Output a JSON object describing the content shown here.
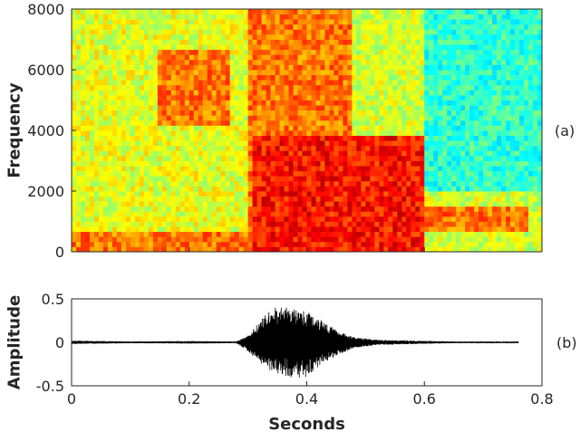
{
  "chart_data": [
    {
      "type": "heatmap",
      "panel_label": "(a)",
      "ylabel": "Frequency",
      "xlim": [
        0,
        0.8
      ],
      "ylim": [
        0,
        8000
      ],
      "yticks": [
        0,
        2000,
        4000,
        6000,
        8000
      ],
      "ytick_labels": [
        "0",
        "2000",
        "4000",
        "6000",
        "8000"
      ],
      "colormap": "jet",
      "x_tick_labels_shown": false,
      "regions": [
        {
          "x": [
            0.0,
            0.31
          ],
          "y": [
            0,
            8000
          ],
          "level": "medium"
        },
        {
          "x": [
            0.15,
            0.27
          ],
          "y": [
            4200,
            6700
          ],
          "level": "high"
        },
        {
          "x": [
            0.0,
            0.3
          ],
          "y": [
            0,
            700
          ],
          "level": "high"
        },
        {
          "x": [
            0.31,
            0.6
          ],
          "y": [
            0,
            3800
          ],
          "level": "very high"
        },
        {
          "x": [
            0.3,
            0.48
          ],
          "y": [
            0,
            8000
          ],
          "level": "high"
        },
        {
          "x": [
            0.45,
            0.78
          ],
          "y": [
            700,
            1500
          ],
          "level": "high"
        },
        {
          "x": [
            0.6,
            0.8
          ],
          "y": [
            2000,
            8000
          ],
          "level": "low"
        }
      ]
    },
    {
      "type": "line",
      "panel_label": "(b)",
      "xlabel": "Seconds",
      "ylabel": "Amplitude",
      "xlim": [
        0,
        0.8
      ],
      "ylim": [
        -0.5,
        0.5
      ],
      "xticks": [
        0,
        0.2,
        0.4,
        0.6,
        0.8
      ],
      "xtick_labels": [
        "0",
        "0.2",
        "0.4",
        "0.6",
        "0.8"
      ],
      "yticks": [
        -0.5,
        0,
        0.5
      ],
      "ytick_labels": [
        "-0.5",
        "0",
        "0.5"
      ],
      "signal_end": 0.76,
      "envelope": {
        "t": [
          0.0,
          0.1,
          0.2,
          0.28,
          0.3,
          0.33,
          0.35,
          0.38,
          0.4,
          0.42,
          0.45,
          0.48,
          0.52,
          0.58,
          0.65,
          0.72,
          0.76
        ],
        "upper": [
          0.02,
          0.01,
          0.015,
          0.01,
          0.08,
          0.32,
          0.42,
          0.38,
          0.36,
          0.3,
          0.14,
          0.06,
          0.03,
          0.02,
          0.01,
          0.01,
          0.01
        ],
        "lower": [
          -0.02,
          -0.01,
          -0.015,
          -0.01,
          -0.1,
          -0.3,
          -0.36,
          -0.42,
          -0.4,
          -0.28,
          -0.16,
          -0.07,
          -0.03,
          -0.02,
          -0.01,
          -0.01,
          -0.01
        ]
      }
    }
  ]
}
